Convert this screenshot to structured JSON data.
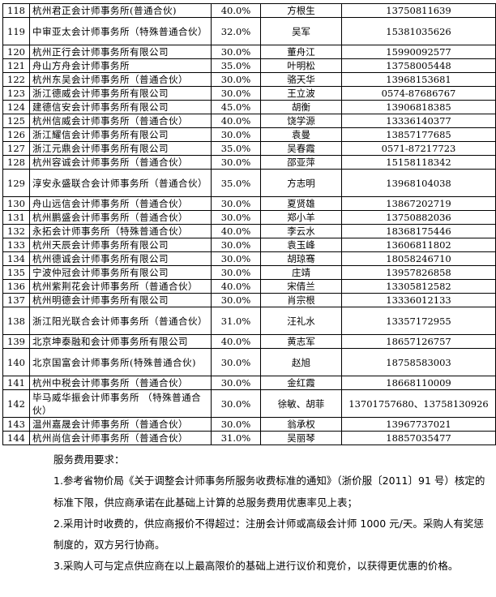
{
  "table": {
    "rows": [
      {
        "no": "118",
        "name": "杭州君正会计师事务所(普通合伙)",
        "rate": "40.0%",
        "contact": "方根生",
        "phone": "13750811639"
      },
      {
        "no": "119",
        "name": "中审亚太会计师事务所（特殊普通合伙）",
        "rate": "32.0%",
        "contact": "吴军",
        "phone": "15381035626"
      },
      {
        "no": "120",
        "name": "杭州正行会计师事务所有限公司",
        "rate": "30.0%",
        "contact": "董舟江",
        "phone": "15990092577"
      },
      {
        "no": "121",
        "name": "舟山方舟会计师事务所",
        "rate": "35.0%",
        "contact": "叶明松",
        "phone": "13758005448"
      },
      {
        "no": "122",
        "name": "杭州东吴会计师事务所（普通合伙）",
        "rate": "30.0%",
        "contact": "骆天华",
        "phone": "13968153681"
      },
      {
        "no": "123",
        "name": "浙江德威会计师事务所有限公司",
        "rate": "30.0%",
        "contact": "王立波",
        "phone": "0574-87686767"
      },
      {
        "no": "124",
        "name": "建德信安会计师事务所有限公司",
        "rate": "45.0%",
        "contact": "胡衡",
        "phone": "13906818385"
      },
      {
        "no": "125",
        "name": "杭州信威会计师事务所（普通合伙）",
        "rate": "40.0%",
        "contact": "饶学源",
        "phone": "13336140377"
      },
      {
        "no": "126",
        "name": "浙江耀信会计师事务所有限公司",
        "rate": "30.0%",
        "contact": "袁曼",
        "phone": "13857177685"
      },
      {
        "no": "127",
        "name": "浙江元鼎会计师事务所有限公司",
        "rate": "35.0%",
        "contact": "吴春霞",
        "phone": "0571-87217723"
      },
      {
        "no": "128",
        "name": "杭州容诚会计师事务所（普通合伙）",
        "rate": "30.0%",
        "contact": "邵亚萍",
        "phone": "15158118342"
      },
      {
        "no": "129",
        "name": "淳安永盛联合会计师事务所（普通合伙）",
        "rate": "35.0%",
        "contact": "方志明",
        "phone": "13968104038"
      },
      {
        "no": "130",
        "name": "舟山远信会计师事务所（普通合伙）",
        "rate": "30.0%",
        "contact": "夏贤雄",
        "phone": "13867202719"
      },
      {
        "no": "131",
        "name": "杭州鹏盛会计师事务所（普通合伙）",
        "rate": "30.0%",
        "contact": "郑小羊",
        "phone": "13750882036"
      },
      {
        "no": "132",
        "name": "永拓会计师事务所（特殊普通合伙）",
        "rate": "40.0%",
        "contact": "李云水",
        "phone": "18368175446"
      },
      {
        "no": "133",
        "name": "杭州天辰会计师事务所有限公司",
        "rate": "30.0%",
        "contact": "袁玉峰",
        "phone": "13606811802"
      },
      {
        "no": "134",
        "name": "杭州德诚会计师事务所有限公司",
        "rate": "30.0%",
        "contact": "胡琼骞",
        "phone": "18058246710"
      },
      {
        "no": "135",
        "name": "宁波仲冠会计师事务所有限公司",
        "rate": "30.0%",
        "contact": "庄靖",
        "phone": "13957826858"
      },
      {
        "no": "136",
        "name": "杭州紫荆花会计师事务所（普通合伙）",
        "rate": "40.0%",
        "contact": "宋倩兰",
        "phone": "13305812582"
      },
      {
        "no": "137",
        "name": "杭州明德会计师事务所有限公司",
        "rate": "30.0%",
        "contact": "肖宗根",
        "phone": "13336012133"
      },
      {
        "no": "138",
        "name": "浙江阳光联合会计师事务所（普通合伙）",
        "rate": "31.0%",
        "contact": "汪礼水",
        "phone": "13357172955"
      },
      {
        "no": "139",
        "name": "北京坤泰融和会计师事务所有限公司",
        "rate": "40.0%",
        "contact": "黄志军",
        "phone": "18657126757"
      },
      {
        "no": "140",
        "name": "北京国富会计师事务所(特殊普通合伙)",
        "rate": "30.0%",
        "contact": "赵旭",
        "phone": "18758583003"
      },
      {
        "no": "141",
        "name": "杭州中税会计师事务所（普通合伙）",
        "rate": "30.0%",
        "contact": "金红霞",
        "phone": "18668110009"
      },
      {
        "no": "142",
        "name": "毕马威华振会计师事务所 （特殊普通合伙）",
        "rate": "30.0%",
        "contact": "徐敏、胡菲",
        "phone": "13701757680、13758130926"
      },
      {
        "no": "143",
        "name": "温州嘉晟会计师事务所（普通合伙）",
        "rate": "30.0%",
        "contact": "翁承权",
        "phone": "13967737021"
      },
      {
        "no": "144",
        "name": "杭州尚信会计师事务所（普通合伙）",
        "rate": "31.0%",
        "contact": "吴丽琴",
        "phone": "18857035477"
      }
    ]
  },
  "notes": {
    "heading": "服务费用要求：",
    "item1": "1.参考省物价局《关于调整会计师事务所服务收费标准的通知》（浙价服〔2011〕91 号）核定的标准下限，供应商承诺在此基础上计算的总服务费用优惠率见上表；",
    "item2": "2.采用计时收费的，供应商报价不得超过：注册会计师或高级会计师 1000 元/天。采购人有奖惩制度的，双方另行协商。",
    "item3": "3.采购人可与定点供应商在以上最高限价的基础上进行议价和竞价，以获得更优惠的价格。"
  }
}
